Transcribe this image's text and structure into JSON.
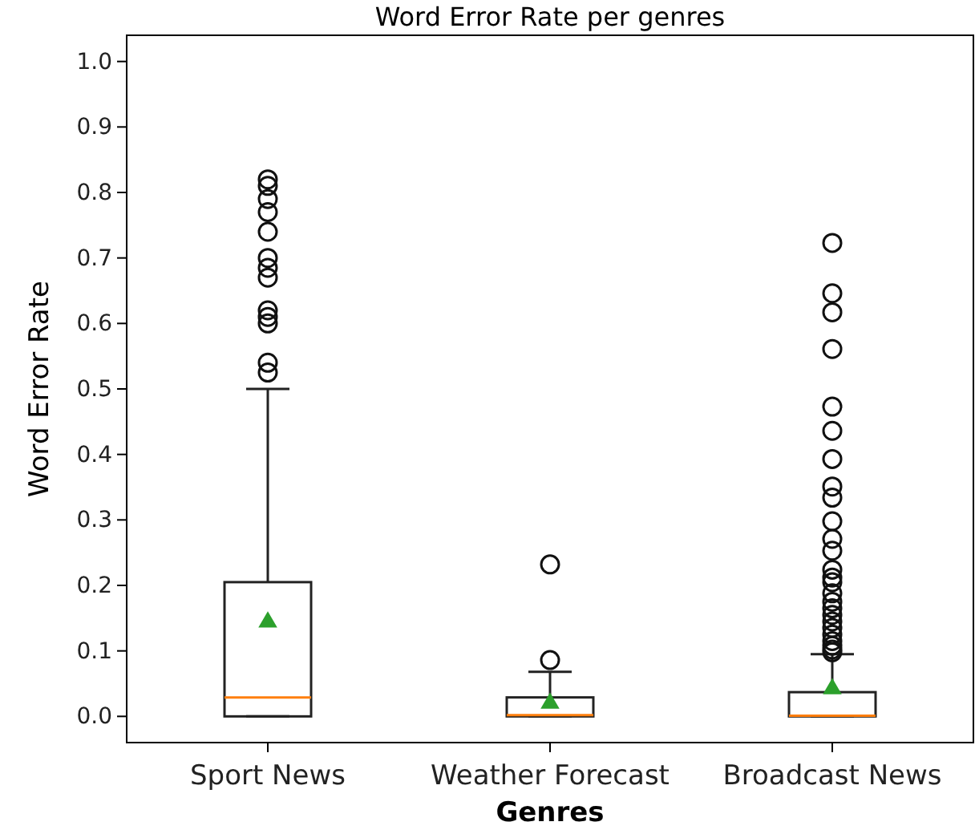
{
  "chart_data": {
    "type": "box",
    "title": "Word Error Rate per genres",
    "xlabel": "Genres",
    "ylabel": "Word Error Rate",
    "categories": [
      "Sport News",
      "Weather Forecast",
      "Broadcast News"
    ],
    "boxes": [
      {
        "low": 0,
        "q1": 0,
        "median": 0.029,
        "q3": 0.205,
        "high": 0.5,
        "mean": 0.144,
        "outliers": [
          0.82,
          0.81,
          0.79,
          0.77,
          0.74,
          0.7,
          0.685,
          0.67,
          0.62,
          0.61,
          0.6,
          0.54,
          0.525
        ]
      },
      {
        "low": 0,
        "q1": 0,
        "median": 0.002,
        "q3": 0.029,
        "high": 0.068,
        "mean": 0.02,
        "outliers": [
          0.086,
          0.232
        ]
      },
      {
        "low": 0,
        "q1": 0,
        "median": 0.001,
        "q3": 0.037,
        "high": 0.095,
        "mean": 0.042,
        "outliers": [
          0.723,
          0.646,
          0.617,
          0.561,
          0.473,
          0.436,
          0.393,
          0.351,
          0.334,
          0.298,
          0.271,
          0.253,
          0.224,
          0.212,
          0.205,
          0.188,
          0.175,
          0.165,
          0.155,
          0.145,
          0.135,
          0.125,
          0.115,
          0.108,
          0.102,
          0.098
        ]
      }
    ],
    "ylim": [
      -0.04,
      1.04
    ],
    "yticks": [
      {
        "value": 0,
        "label": "0.0"
      },
      {
        "value": 0.1,
        "label": "0.1"
      },
      {
        "value": 0.2,
        "label": "0.2"
      },
      {
        "value": 0.3,
        "label": "0.3"
      },
      {
        "value": 0.4,
        "label": "0.4"
      },
      {
        "value": 0.5,
        "label": "0.5"
      },
      {
        "value": 0.6,
        "label": "0.6"
      },
      {
        "value": 0.7,
        "label": "0.7"
      },
      {
        "value": 0.8,
        "label": "0.8"
      },
      {
        "value": 0.9,
        "label": "0.9"
      },
      {
        "value": 1,
        "label": "1.0"
      }
    ],
    "grid": false
  }
}
